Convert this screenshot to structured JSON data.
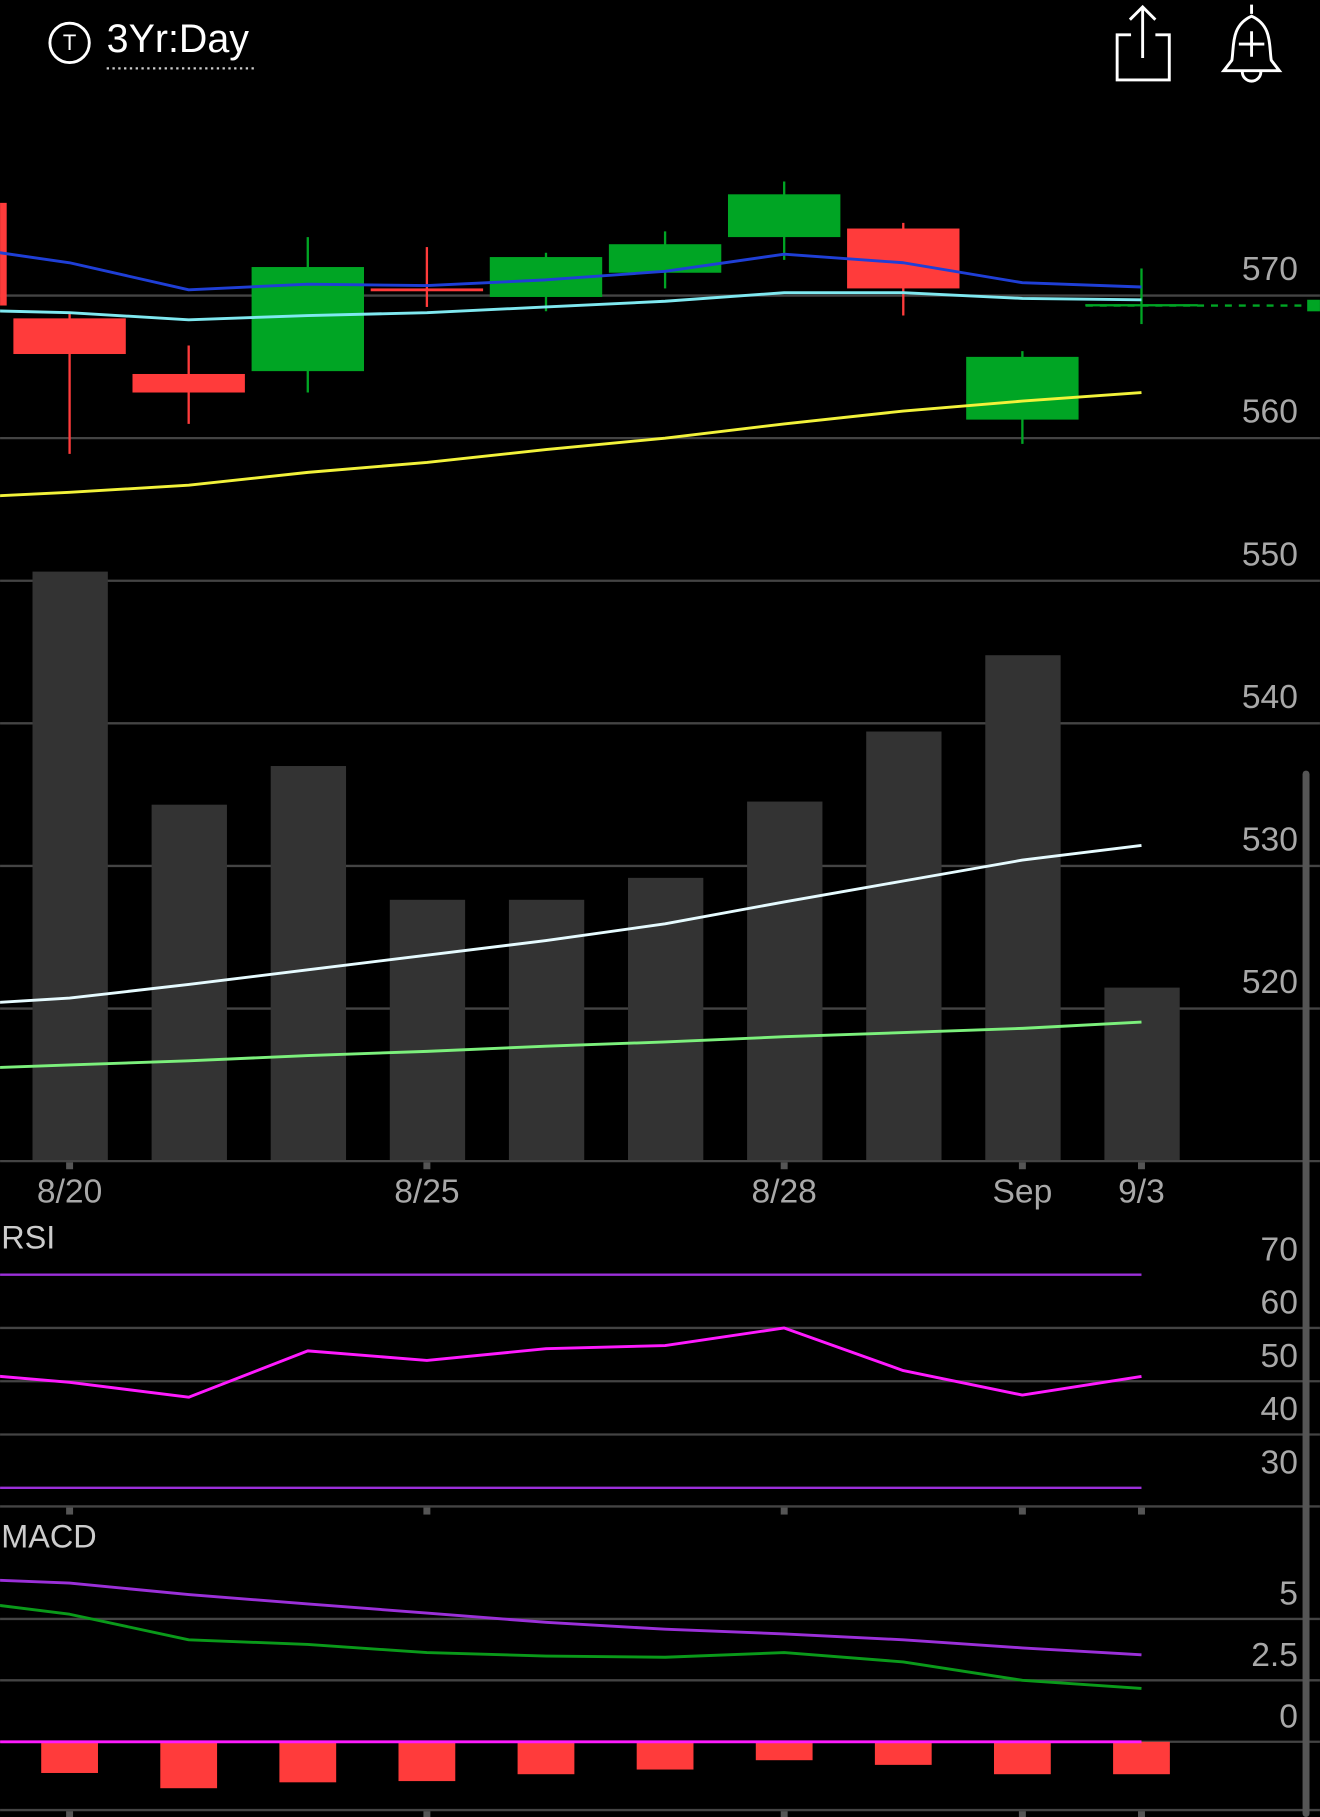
{
  "header": {
    "title": "3Yr:Day",
    "icon_letter": "T"
  },
  "chart_data": [
    {
      "type": "candlestick",
      "categories": [
        null,
        "8/20",
        null,
        null,
        "8/25",
        null,
        null,
        "8/28",
        null,
        "Sep",
        "9/3"
      ],
      "open": [
        576.5,
        568.4,
        564.5,
        564.7,
        570.5,
        569.9,
        571.6,
        574.1,
        574.7,
        561.3,
        569.3
      ],
      "high": [
        576.5,
        568.8,
        566.5,
        574.1,
        573.4,
        573.0,
        574.5,
        578.0,
        575.1,
        566.1,
        571.9
      ],
      "low": [
        569.3,
        558.9,
        561.0,
        563.2,
        569.2,
        568.9,
        570.5,
        572.5,
        568.6,
        559.6,
        568.0
      ],
      "close": [
        569.3,
        565.9,
        563.2,
        572.0,
        570.3,
        572.7,
        573.6,
        577.1,
        570.5,
        565.7,
        569.4
      ],
      "up_color": "#00a524",
      "down_color": "#ff3b3b",
      "overlays": [
        {
          "color": "#1f3fd6",
          "values": [
            573.5,
            572.3,
            570.4,
            570.8,
            570.7,
            571.1,
            571.7,
            572.9,
            572.3,
            570.9,
            570.6
          ]
        },
        {
          "color": "#7fe8f0",
          "values": [
            569.0,
            568.8,
            568.3,
            568.6,
            568.8,
            569.2,
            569.6,
            570.2,
            570.2,
            569.8,
            569.7
          ]
        },
        {
          "color": "#f2f23a",
          "values": [
            555.8,
            556.2,
            556.7,
            557.6,
            558.3,
            559.2,
            560.0,
            561.0,
            561.9,
            562.6,
            563.2
          ]
        }
      ],
      "last_price": 569.3,
      "last_price_color": "#00a524",
      "ylim": [
        509.3,
        582.6
      ],
      "yticks": [
        520,
        530,
        540,
        550,
        560,
        570
      ],
      "grid": true,
      "volume": {
        "color": "#333333",
        "ylim": [
          0,
          100
        ],
        "values": [
          null,
          56.4,
          34.1,
          37.8,
          25.0,
          25.0,
          27.1,
          34.4,
          41.1,
          48.4,
          16.6
        ],
        "lines": [
          {
            "color": "#e6fbff",
            "values": [
              14.9,
              15.6,
              16.9,
              18.3,
              19.7,
              21.1,
              22.7,
              24.8,
              26.8,
              28.8,
              30.2
            ]
          },
          {
            "color": "#7cf07c",
            "values": [
              8.8,
              9.2,
              9.6,
              10.1,
              10.5,
              11.0,
              11.4,
              11.9,
              12.3,
              12.7,
              13.3
            ]
          }
        ]
      }
    },
    {
      "type": "line",
      "title": "RSI",
      "series": [
        {
          "color": "#ff1aff",
          "values": [
            51.7,
            49.8,
            47.0,
            55.7,
            53.9,
            56.1,
            56.7,
            60.0,
            52.0,
            47.4,
            50.9
          ]
        }
      ],
      "ylim": [
        26.5,
        78.7
      ],
      "yticks": [
        30,
        40,
        50,
        60,
        70
      ],
      "grid": true,
      "levels": [
        30,
        70
      ],
      "level_color": "#9b30d9"
    },
    {
      "type": "macd",
      "title": "MACD",
      "series": [
        {
          "color": "#9b30d9",
          "values": [
            6.65,
            6.46,
            5.99,
            5.61,
            5.24,
            4.86,
            4.58,
            4.39,
            4.15,
            3.82,
            3.54
          ]
        },
        {
          "color": "#0a9a1a",
          "values": [
            5.8,
            5.19,
            4.15,
            3.96,
            3.63,
            3.49,
            3.44,
            3.63,
            3.25,
            2.5,
            2.17
          ]
        }
      ],
      "histogram": {
        "color": "#ff3b3b",
        "values": [
          null,
          -1.27,
          -1.89,
          -1.65,
          -1.6,
          -1.32,
          -1.13,
          -0.75,
          -0.94,
          -1.32,
          -1.32
        ]
      },
      "ylim": [
        -2.92,
        8.87
      ],
      "yticks": [
        0,
        2.5,
        5
      ],
      "grid": true,
      "zero_color": "#ff1aff"
    }
  ]
}
